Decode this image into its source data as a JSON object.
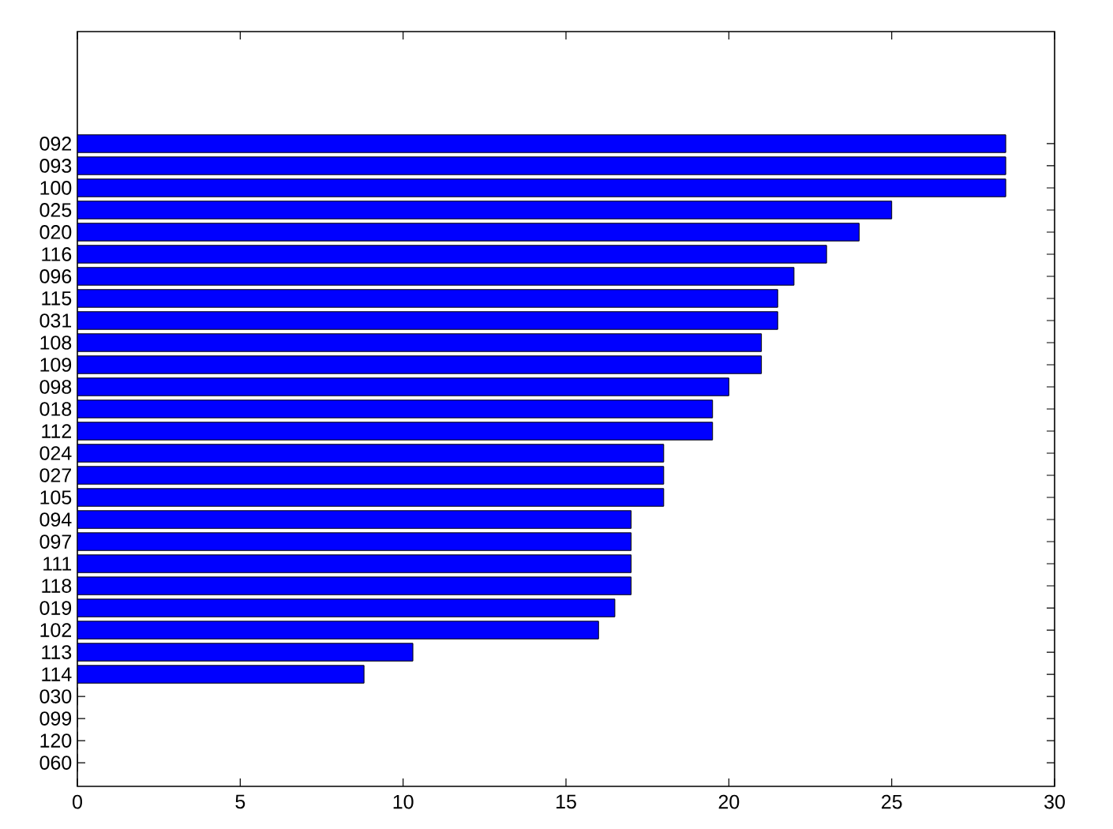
{
  "chart_data": {
    "type": "bar",
    "orientation": "horizontal",
    "color": "#0000ff",
    "categories": [
      "092",
      "093",
      "100",
      "025",
      "020",
      "116",
      "096",
      "115",
      "031",
      "108",
      "109",
      "098",
      "018",
      "112",
      "024",
      "027",
      "105",
      "094",
      "097",
      "111",
      "118",
      "019",
      "102",
      "113",
      "114",
      "030",
      "099",
      "120",
      "060"
    ],
    "values": [
      28.5,
      28.5,
      28.5,
      25,
      24,
      23,
      22,
      21.5,
      21.5,
      21,
      21,
      20,
      19.5,
      19.5,
      18,
      18,
      18,
      17,
      17,
      17,
      17,
      16.5,
      16,
      10.3,
      8.8,
      0,
      0,
      0,
      0
    ],
    "xlim": [
      0,
      30
    ],
    "xticks": [
      0,
      5,
      10,
      15,
      20,
      25,
      30
    ]
  }
}
